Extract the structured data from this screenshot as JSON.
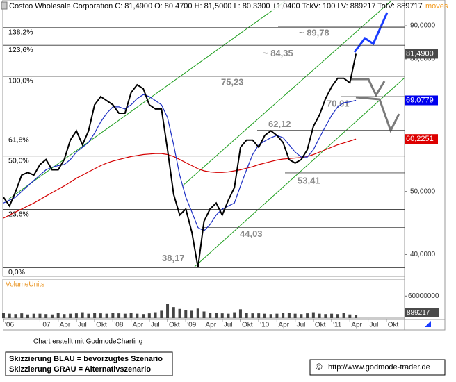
{
  "header": {
    "quote": "Costco Wholesale Corporation C: 81,4900 O: 80,4700 H: 81,5000 L: 80,3300 +1,0400 TckV: 100 LV: 889217 TotV: 889717",
    "tag": "moves"
  },
  "chart_data": {
    "type": "line",
    "log_scale": true,
    "x": [
      "2006-07",
      "2006-08",
      "2006-09",
      "2006-10",
      "2006-11",
      "2006-12",
      "2007-01",
      "2007-02",
      "2007-03",
      "2007-04",
      "2007-05",
      "2007-06",
      "2007-07",
      "2007-08",
      "2007-09",
      "2007-10",
      "2007-11",
      "2007-12",
      "2008-01",
      "2008-02",
      "2008-03",
      "2008-04",
      "2008-05",
      "2008-06",
      "2008-07",
      "2008-08",
      "2008-09",
      "2008-10",
      "2008-11",
      "2008-12",
      "2009-01",
      "2009-02",
      "2009-03",
      "2009-04",
      "2009-05",
      "2009-06",
      "2009-07",
      "2009-08",
      "2009-09",
      "2009-10",
      "2009-11",
      "2009-12",
      "2010-01",
      "2010-02",
      "2010-03",
      "2010-04",
      "2010-05",
      "2010-06",
      "2010-07",
      "2010-08",
      "2010-09",
      "2010-10",
      "2010-11",
      "2010-12",
      "2011-01",
      "2011-02",
      "2011-03",
      "2011-04",
      "2011-05"
    ],
    "series": [
      {
        "color": "#000000",
        "values": [
          49,
          47.5,
          50,
          53,
          53.5,
          53,
          55,
          56,
          54,
          54,
          56,
          60,
          62,
          59,
          62,
          68,
          70,
          69,
          68,
          66,
          66,
          71,
          73,
          72,
          68,
          67,
          67,
          58,
          49.5,
          46,
          47,
          43.3,
          38.2,
          45,
          47,
          48,
          46,
          48.5,
          50.7,
          58.5,
          60,
          60,
          58.5,
          61,
          62,
          61,
          59.5,
          56,
          55.3,
          56,
          58,
          63,
          65.6,
          69.5,
          72.5,
          74.7,
          74.7,
          73.5,
          81.49
        ]
      },
      {
        "color": "#d40000",
        "values": [
          45.5,
          46,
          46.5,
          47,
          47.5,
          48,
          48.6,
          49.2,
          49.8,
          50.4,
          51,
          51.7,
          52.4,
          53,
          53.6,
          54.2,
          54.8,
          55.3,
          55.7,
          56,
          56.3,
          56.6,
          56.8,
          57,
          57.1,
          57.2,
          57.2,
          57,
          56.6,
          56,
          55.4,
          54.8,
          54.2,
          53.8,
          53.6,
          53.5,
          53.5,
          53.6,
          53.8,
          54,
          54.3,
          54.6,
          55,
          55.3,
          55.6,
          55.9,
          56.1,
          56.2,
          56.3,
          56.4,
          56.6,
          57,
          57.5,
          58,
          58.5,
          59,
          59.4,
          59.8,
          60.2251
        ]
      },
      {
        "color": "#1c2fc4",
        "values": [
          48,
          48.5,
          49,
          50,
          51,
          52,
          53,
          54,
          54.5,
          54.8,
          55,
          56,
          57.5,
          58.5,
          59.5,
          61.5,
          64,
          66,
          67.5,
          67.5,
          67,
          68,
          69.5,
          70.5,
          70,
          69,
          68,
          65,
          59,
          53,
          49,
          46.5,
          44,
          43.5,
          44.5,
          46,
          47,
          47.5,
          48,
          51,
          54,
          57,
          59,
          59.8,
          60.5,
          61,
          60.5,
          59,
          57.5,
          56.5,
          56.5,
          58,
          60.5,
          63,
          65.5,
          67.5,
          68.5,
          68.7,
          69.0779
        ]
      }
    ],
    "xlim": [
      "2006-07",
      "2012-01"
    ],
    "xticks": [
      {
        "value": "2006-07",
        "label": "'06"
      },
      {
        "value": "2007-01",
        "label": "'07"
      },
      {
        "value": "2007-04",
        "label": "Apr"
      },
      {
        "value": "2007-07",
        "label": "Jul"
      },
      {
        "value": "2007-10",
        "label": "Okt"
      },
      {
        "value": "2008-01",
        "label": "'08"
      },
      {
        "value": "2008-04",
        "label": "Apr"
      },
      {
        "value": "2008-07",
        "label": "Jul"
      },
      {
        "value": "2008-10",
        "label": "Okt"
      },
      {
        "value": "2009-01",
        "label": "'09"
      },
      {
        "value": "2009-04",
        "label": "Apr"
      },
      {
        "value": "2009-07",
        "label": "Jul"
      },
      {
        "value": "2009-10",
        "label": "Okt"
      },
      {
        "value": "2010-01",
        "label": "'10"
      },
      {
        "value": "2010-04",
        "label": "Apr"
      },
      {
        "value": "2010-07",
        "label": "Jul"
      },
      {
        "value": "2010-10",
        "label": "Okt"
      },
      {
        "value": "2011-01",
        "label": "'11"
      },
      {
        "value": "2011-04",
        "label": "Apr"
      },
      {
        "value": "2011-07",
        "label": "Jul"
      },
      {
        "value": "2011-10",
        "label": "Okt"
      }
    ],
    "ylim": [
      37,
      98.6
    ],
    "yticks": [
      {
        "value": 40,
        "label": "40,0000"
      },
      {
        "value": 50,
        "label": "50,0000"
      },
      {
        "value": 80,
        "label": "80,0000"
      },
      {
        "value": 90,
        "label": "90,0000"
      }
    ],
    "levels": [
      {
        "value": 89.39,
        "label": "138,2%"
      },
      {
        "value": 83.98,
        "label": "123,6%"
      },
      {
        "value": 75.23,
        "label": "100,0%"
      },
      {
        "value": 61.07,
        "label": "61,8%"
      },
      {
        "value": 56.7,
        "label": "50,0%"
      },
      {
        "value": 46.92,
        "label": "23,6%"
      },
      {
        "value": 38.17,
        "label": "0,0%"
      }
    ],
    "annotations": [
      {
        "value": 89.78,
        "label": "~ 89,78"
      },
      {
        "value": 84.35,
        "label": "~ 84,35"
      },
      {
        "value": 75.23,
        "label": "75,23"
      },
      {
        "value": 70.01,
        "label": "70,01"
      },
      {
        "value": 62.12,
        "label": "62,12"
      },
      {
        "value": 53.41,
        "label": "53,41"
      },
      {
        "value": 44.03,
        "label": "44,03"
      },
      {
        "value": 38.17,
        "label": "38,17"
      }
    ],
    "price_tags": [
      {
        "value": 81.49,
        "label": "81,4900",
        "color": "#4a4a4a"
      },
      {
        "value": 69.0779,
        "label": "69,0779",
        "color": "#0000ee"
      },
      {
        "value": 60.2251,
        "label": "60,2251",
        "color": "#dd0000"
      }
    ],
    "volume": {
      "label": "VolumeUnits",
      "color": "#444444",
      "values": [
        14000000,
        12000000,
        11000000,
        13000000,
        10000000,
        12000000,
        12000000,
        11000000,
        10000000,
        14000000,
        11000000,
        12000000,
        13000000,
        16000000,
        12000000,
        15000000,
        13000000,
        12000000,
        14000000,
        13000000,
        12000000,
        15000000,
        12000000,
        11000000,
        13000000,
        16000000,
        20000000,
        38000000,
        30000000,
        25000000,
        22000000,
        20000000,
        26000000,
        18000000,
        15000000,
        14000000,
        13000000,
        12000000,
        16000000,
        24000000,
        14000000,
        13000000,
        13000000,
        12000000,
        11000000,
        12000000,
        15000000,
        14000000,
        12000000,
        11000000,
        13000000,
        16000000,
        12000000,
        11000000,
        12000000,
        11000000,
        14000000,
        10000000,
        9000000
      ],
      "ylim": [
        0,
        106000000
      ],
      "yticks": [
        {
          "value": 60000000,
          "label": "60000000"
        }
      ],
      "last": {
        "value": 889217,
        "label": "889217"
      }
    }
  },
  "footer": {
    "credit": "Chart erstellt mit GodmodeCharting",
    "legend": [
      "Skizzierung BLAU = bevorzugtes Szenario",
      "Skizzierung GRAU = Alternativszenario"
    ],
    "url_icon": "©",
    "url": "http://www.godmode-trader.de"
  }
}
